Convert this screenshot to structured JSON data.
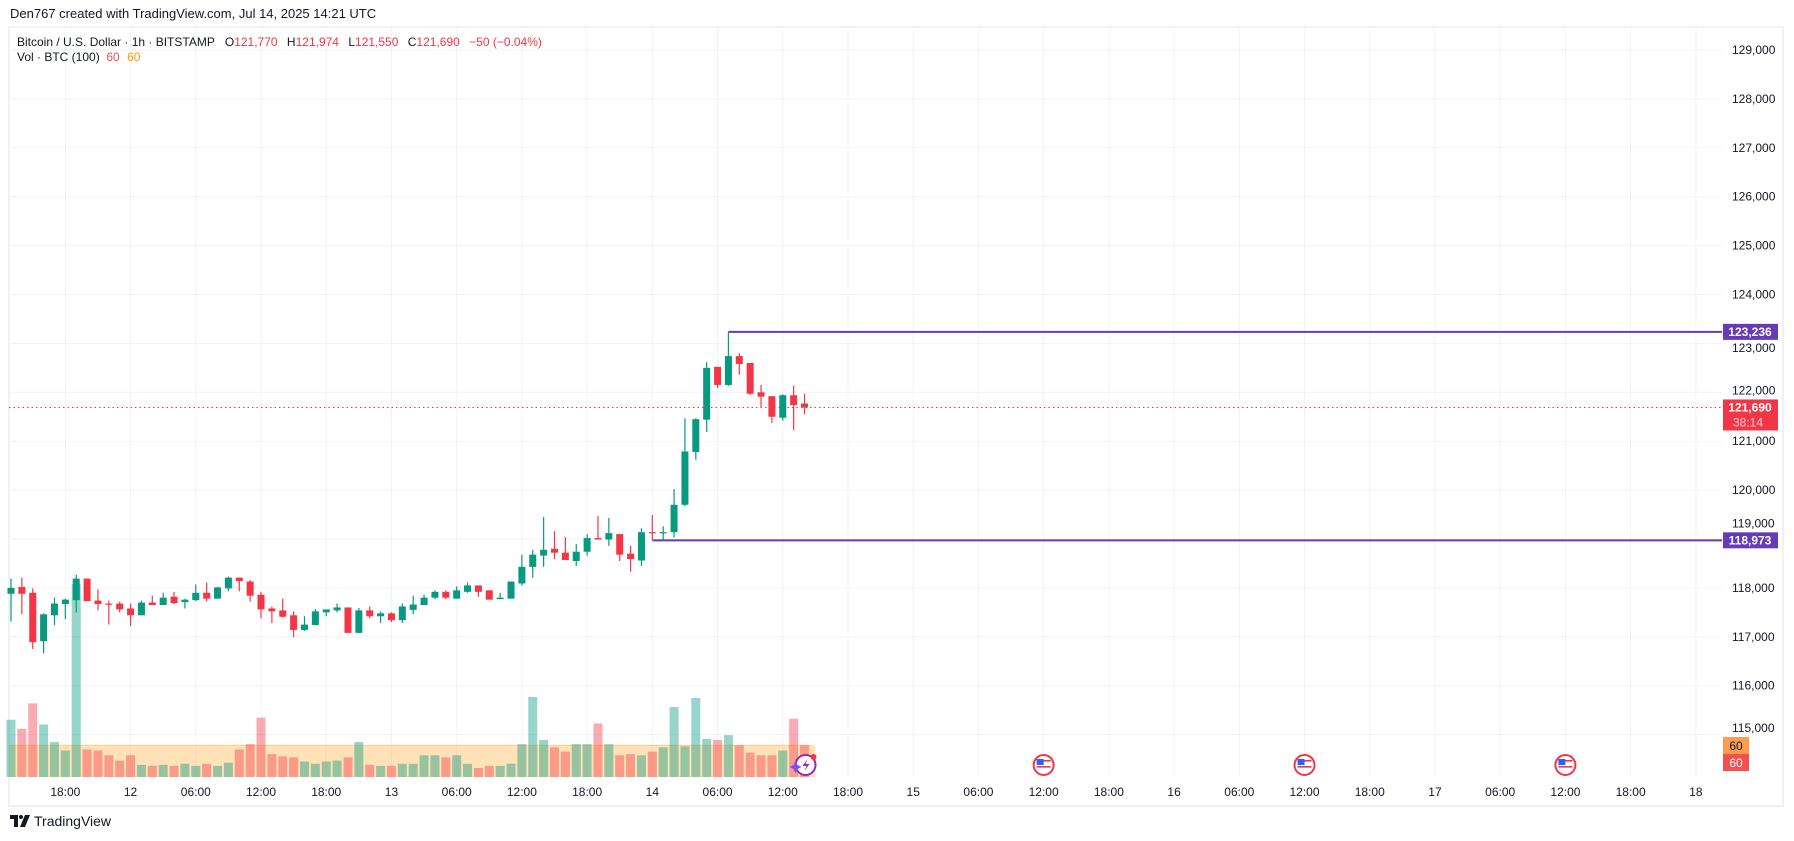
{
  "header": {
    "attribution": "Den767 created with TradingView.com, Jul 14, 2025 14:21 UTC"
  },
  "legend": {
    "symbol": "Bitcoin / U.S. Dollar · 1h · BITSTAMP",
    "o_label": "O",
    "o_value": "121,770",
    "h_label": "H",
    "h_value": "121,974",
    "l_label": "L",
    "l_value": "121,550",
    "c_label": "C",
    "c_value": "121,690",
    "change": "−50 (−0.04%)",
    "volume_label": "Vol · BTC (100)",
    "volume_value": "60",
    "volume_ma_value": "60"
  },
  "branding": {
    "logo_text": "TradingView"
  },
  "colors": {
    "up": "#089981",
    "down": "#f23645",
    "level_line": "#673ab7",
    "volume_ma": "#ff9800",
    "grid": "#f0f3fa"
  },
  "chart_data": {
    "type": "candlestick",
    "interval": "1h",
    "price_axis": {
      "range": [
        115000,
        129000
      ],
      "ticks": [
        "115,000",
        "116,000",
        "117,000",
        "118,000",
        "119,000",
        "120,000",
        "121,000",
        "122,000",
        "123,000",
        "124,000",
        "125,000",
        "126,000",
        "127,000",
        "128,000",
        "129,000"
      ]
    },
    "time_axis": {
      "labels": [
        "18:00",
        "12",
        "06:00",
        "12:00",
        "18:00",
        "13",
        "06:00",
        "12:00",
        "18:00",
        "14",
        "06:00",
        "12:00",
        "18:00",
        "15",
        "06:00",
        "12:00",
        "18:00",
        "16",
        "06:00",
        "12:00",
        "18:00",
        "17",
        "06:00",
        "12:00",
        "18:00",
        "18"
      ]
    },
    "ohlc": [
      [
        117880,
        118190,
        117310,
        118000
      ],
      [
        118020,
        118210,
        117460,
        117880
      ],
      [
        117900,
        117990,
        116750,
        116890
      ],
      [
        116910,
        117480,
        116660,
        117460
      ],
      [
        117440,
        117800,
        117240,
        117680
      ],
      [
        117670,
        117780,
        117360,
        117760
      ],
      [
        117750,
        118270,
        117500,
        118190
      ],
      [
        118190,
        118190,
        117730,
        117730
      ],
      [
        117740,
        117970,
        117540,
        117670
      ],
      [
        117680,
        117740,
        117250,
        117670
      ],
      [
        117680,
        117720,
        117500,
        117560
      ],
      [
        117580,
        117680,
        117220,
        117440
      ],
      [
        117440,
        117740,
        117440,
        117700
      ],
      [
        117700,
        117840,
        117650,
        117650
      ],
      [
        117650,
        117900,
        117650,
        117800
      ],
      [
        117820,
        117920,
        117670,
        117690
      ],
      [
        117710,
        117780,
        117580,
        117760
      ],
      [
        117750,
        118070,
        117730,
        117900
      ],
      [
        117900,
        118110,
        117720,
        117780
      ],
      [
        117780,
        118020,
        117780,
        118010
      ],
      [
        117990,
        118230,
        117930,
        118210
      ],
      [
        118210,
        118210,
        117930,
        118140
      ],
      [
        118130,
        118160,
        117720,
        117840
      ],
      [
        117860,
        117920,
        117380,
        117560
      ],
      [
        117580,
        117620,
        117280,
        117520
      ],
      [
        117540,
        117780,
        117400,
        117410
      ],
      [
        117440,
        117520,
        116990,
        117140
      ],
      [
        117140,
        117420,
        117120,
        117250
      ],
      [
        117240,
        117570,
        117240,
        117520
      ],
      [
        117500,
        117560,
        117420,
        117560
      ],
      [
        117540,
        117680,
        117500,
        117600
      ],
      [
        117600,
        117600,
        117080,
        117080
      ],
      [
        117080,
        117590,
        117080,
        117540
      ],
      [
        117540,
        117620,
        117380,
        117420
      ],
      [
        117420,
        117520,
        117280,
        117480
      ],
      [
        117480,
        117500,
        117300,
        117340
      ],
      [
        117340,
        117680,
        117280,
        117620
      ],
      [
        117550,
        117840,
        117460,
        117660
      ],
      [
        117650,
        117860,
        117650,
        117800
      ],
      [
        117800,
        117950,
        117770,
        117920
      ],
      [
        117920,
        117950,
        117770,
        117800
      ],
      [
        117780,
        118030,
        117780,
        117950
      ],
      [
        117920,
        118110,
        117900,
        118050
      ],
      [
        118050,
        118050,
        117820,
        117920
      ],
      [
        117950,
        117950,
        117760,
        117760
      ],
      [
        117770,
        117900,
        117770,
        117800
      ],
      [
        117780,
        118130,
        117780,
        118130
      ],
      [
        118090,
        118680,
        118050,
        118430
      ],
      [
        118430,
        118780,
        118210,
        118680
      ],
      [
        118660,
        119450,
        118430,
        118780
      ],
      [
        118800,
        119160,
        118590,
        118720
      ],
      [
        118720,
        119040,
        118570,
        118570
      ],
      [
        118550,
        118900,
        118450,
        118740
      ],
      [
        118740,
        119100,
        118660,
        119020
      ],
      [
        119020,
        119470,
        118990,
        118990
      ],
      [
        118990,
        119430,
        118860,
        119120
      ],
      [
        119100,
        119100,
        118550,
        118680
      ],
      [
        118700,
        118860,
        118330,
        118590
      ],
      [
        118560,
        119220,
        118450,
        119140
      ],
      [
        119140,
        119490,
        118980,
        119130
      ],
      [
        119130,
        119260,
        118980,
        119140
      ],
      [
        119140,
        120020,
        119030,
        119700
      ],
      [
        119700,
        121470,
        119670,
        120790
      ],
      [
        120780,
        121470,
        120620,
        121450
      ],
      [
        121440,
        122620,
        121190,
        122500
      ],
      [
        122520,
        122520,
        122090,
        122150
      ],
      [
        122150,
        123236,
        122130,
        122740
      ],
      [
        122740,
        122800,
        122360,
        122580
      ],
      [
        122600,
        122600,
        121950,
        121970
      ],
      [
        122000,
        122150,
        121700,
        121910
      ],
      [
        121920,
        121920,
        121370,
        121500
      ],
      [
        121480,
        121960,
        121420,
        121940
      ],
      [
        121940,
        122130,
        121230,
        121740
      ],
      [
        121770,
        121974,
        121550,
        121690
      ]
    ],
    "volume": [
      108,
      91,
      139,
      99,
      66,
      50,
      364,
      52,
      50,
      41,
      31,
      41,
      23,
      21,
      23,
      21,
      25,
      21,
      25,
      21,
      27,
      52,
      62,
      112,
      43,
      39,
      37,
      29,
      25,
      29,
      31,
      37,
      66,
      23,
      21,
      21,
      25,
      25,
      41,
      41,
      37,
      41,
      25,
      17,
      21,
      21,
      25,
      62,
      151,
      70,
      56,
      48,
      62,
      62,
      101,
      62,
      41,
      43,
      41,
      48,
      56,
      132,
      58,
      149,
      72,
      70,
      79,
      60,
      46,
      41,
      41,
      50,
      110,
      60
    ],
    "volume_ma": 60,
    "horizontal_levels": [
      {
        "price": 123236,
        "label": "123,236",
        "start_candle": 66
      },
      {
        "price": 118973,
        "label": "118,973",
        "start_candle": 59
      }
    ],
    "last_price": {
      "price": 121690,
      "label": "121,690",
      "countdown": "38:14"
    },
    "volume_axis_labels": {
      "ma": "60",
      "volume": "60"
    },
    "event_markers": [
      {
        "type": "us-flag-icon",
        "time": "15 12:00"
      },
      {
        "type": "us-flag-icon",
        "time": "16 12:00"
      },
      {
        "type": "us-flag-icon",
        "time": "17 12:00"
      }
    ]
  }
}
